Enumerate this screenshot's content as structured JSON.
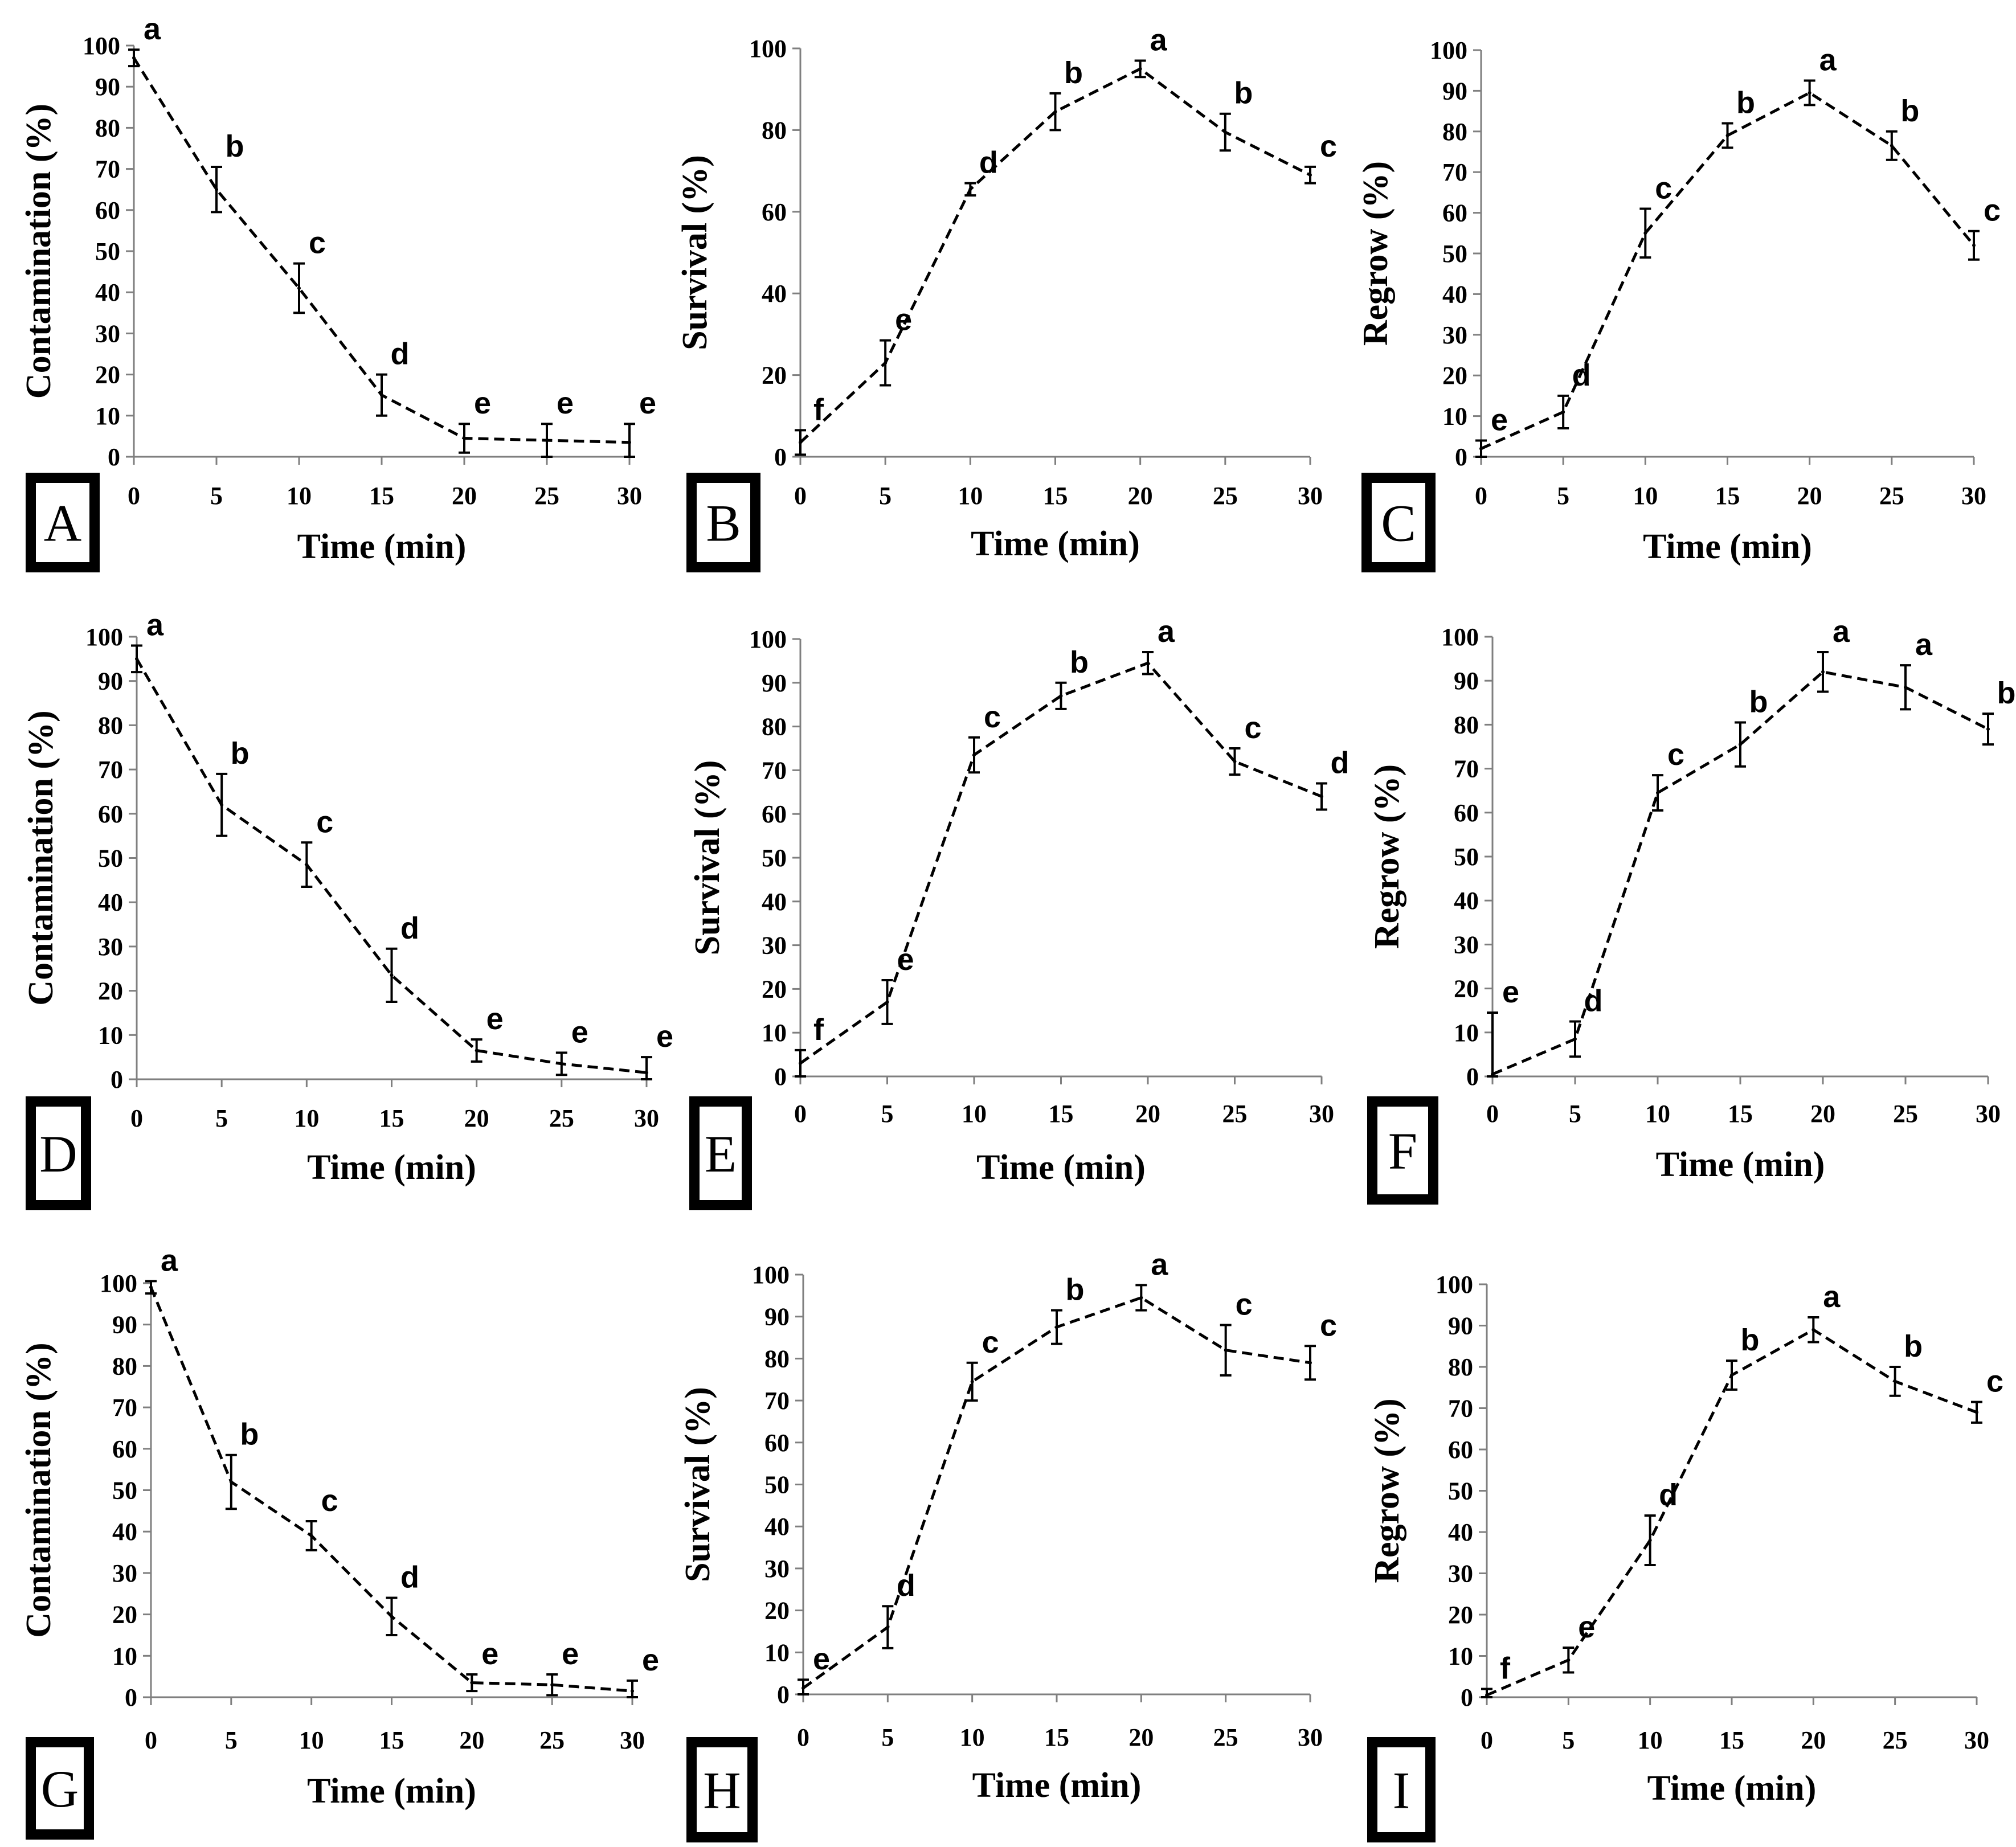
{
  "chart_data": [
    {
      "type": "line",
      "panel_label": "A",
      "xlabel": "Time (min)",
      "ylabel": "Contamination (%)",
      "x": [
        0,
        5,
        10,
        15,
        20,
        25,
        30
      ],
      "y": [
        97,
        65,
        41,
        15,
        4.5,
        4,
        3.5
      ],
      "err": [
        2,
        5.5,
        6,
        5,
        3.5,
        4,
        4.5
      ],
      "letters": [
        "a",
        "b",
        "c",
        "d",
        "e",
        "e",
        "e"
      ],
      "xlim": [
        0,
        30
      ],
      "ylim": [
        0,
        100
      ],
      "yticks": [
        0,
        10,
        20,
        30,
        40,
        50,
        60,
        70,
        80,
        90,
        100
      ],
      "xticks": [
        0,
        5,
        10,
        15,
        20,
        25,
        30
      ]
    },
    {
      "type": "line",
      "panel_label": "B",
      "xlabel": "Time (min)",
      "ylabel": "Survival (%)",
      "x": [
        0,
        5,
        10,
        15,
        20,
        25,
        30
      ],
      "y": [
        3.5,
        23,
        65.5,
        84.5,
        95,
        79.5,
        69
      ],
      "err": [
        3,
        5.5,
        1.5,
        4.5,
        2,
        4.5,
        2
      ],
      "letters": [
        "f",
        "e",
        "d",
        "b",
        "a",
        "b",
        "c"
      ],
      "xlim": [
        0,
        30
      ],
      "ylim": [
        0,
        100
      ],
      "yticks": [
        0,
        20,
        40,
        60,
        80,
        100
      ],
      "xticks": [
        0,
        5,
        10,
        15,
        20,
        25,
        30
      ]
    },
    {
      "type": "line",
      "panel_label": "C",
      "xlabel": "Time (min)",
      "ylabel": "Regrow (%)",
      "x": [
        0,
        5,
        10,
        15,
        20,
        25,
        30
      ],
      "y": [
        2,
        11,
        55,
        79,
        89.5,
        76.5,
        52
      ],
      "err": [
        2,
        4,
        6,
        3,
        3,
        3.5,
        3.5
      ],
      "letters": [
        "e",
        "d",
        "c",
        "b",
        "a",
        "b",
        "c"
      ],
      "xlim": [
        0,
        30
      ],
      "ylim": [
        0,
        100
      ],
      "yticks": [
        0,
        10,
        20,
        30,
        40,
        50,
        60,
        70,
        80,
        90,
        100
      ],
      "xticks": [
        0,
        5,
        10,
        15,
        20,
        25,
        30
      ]
    },
    {
      "type": "line",
      "panel_label": "D",
      "xlabel": "Time (min)",
      "ylabel": "Contamination (%)",
      "x": [
        0,
        5,
        10,
        15,
        20,
        25,
        30
      ],
      "y": [
        95,
        62,
        48.5,
        23.5,
        6.5,
        3.5,
        1.5
      ],
      "err": [
        3,
        7,
        5,
        6,
        2.5,
        2.5,
        3.5
      ],
      "letters": [
        "a",
        "b",
        "c",
        "d",
        "e",
        "e",
        "e"
      ],
      "xlim": [
        0,
        30
      ],
      "ylim": [
        0,
        100
      ],
      "yticks": [
        0,
        10,
        20,
        30,
        40,
        50,
        60,
        70,
        80,
        90,
        100
      ],
      "xticks": [
        0,
        5,
        10,
        15,
        20,
        25,
        30
      ]
    },
    {
      "type": "line",
      "panel_label": "E",
      "xlabel": "Time (min)",
      "ylabel": "Survival (%)",
      "x": [
        0,
        5,
        10,
        15,
        20,
        25,
        30
      ],
      "y": [
        3,
        17,
        73.5,
        87,
        94.5,
        72,
        64
      ],
      "err": [
        3,
        5,
        4,
        3,
        2.5,
        3,
        3
      ],
      "letters": [
        "f",
        "e",
        "c",
        "b",
        "a",
        "c",
        "d"
      ],
      "xlim": [
        0,
        30
      ],
      "ylim": [
        0,
        100
      ],
      "yticks": [
        0,
        10,
        20,
        30,
        40,
        50,
        60,
        70,
        80,
        90,
        100
      ],
      "xticks": [
        0,
        5,
        10,
        15,
        20,
        25,
        30
      ]
    },
    {
      "type": "line",
      "panel_label": "F",
      "xlabel": "Time (min)",
      "ylabel": "Regrow (%)",
      "x": [
        0,
        5,
        10,
        15,
        20,
        25,
        30
      ],
      "y": [
        0.5,
        8.5,
        64.5,
        75.5,
        92,
        88.5,
        79
      ],
      "err": [
        14,
        4,
        4,
        5,
        4.5,
        5,
        3.5
      ],
      "letters": [
        "e",
        "d",
        "c",
        "b",
        "a",
        "a",
        "b"
      ],
      "xlim": [
        0,
        30
      ],
      "ylim": [
        0,
        100
      ],
      "yticks": [
        0,
        10,
        20,
        30,
        40,
        50,
        60,
        70,
        80,
        90,
        100
      ],
      "xticks": [
        0,
        5,
        10,
        15,
        20,
        25,
        30
      ]
    },
    {
      "type": "line",
      "panel_label": "G",
      "xlabel": "Time (min)",
      "ylabel": "Contamination (%)",
      "x": [
        0,
        5,
        10,
        15,
        20,
        25,
        30
      ],
      "y": [
        99,
        52,
        39,
        19.5,
        3.5,
        3,
        1.5
      ],
      "err": [
        1.5,
        6.5,
        3.5,
        4.5,
        2,
        2.5,
        2.5
      ],
      "letters": [
        "a",
        "b",
        "c",
        "d",
        "e",
        "e",
        "e"
      ],
      "xlim": [
        0,
        30
      ],
      "ylim": [
        0,
        100
      ],
      "yticks": [
        0,
        10,
        20,
        30,
        40,
        50,
        60,
        70,
        80,
        90,
        100
      ],
      "xticks": [
        0,
        5,
        10,
        15,
        20,
        25,
        30
      ]
    },
    {
      "type": "line",
      "panel_label": "H",
      "xlabel": "Time (min)",
      "ylabel": "Survival (%)",
      "x": [
        0,
        5,
        10,
        15,
        20,
        25,
        30
      ],
      "y": [
        1.5,
        16,
        74.5,
        87.5,
        94.5,
        82,
        79
      ],
      "err": [
        2,
        5,
        4.5,
        4,
        3,
        6,
        4
      ],
      "letters": [
        "e",
        "d",
        "c",
        "b",
        "a",
        "c",
        "c"
      ],
      "xlim": [
        0,
        30
      ],
      "ylim": [
        0,
        100
      ],
      "yticks": [
        0,
        10,
        20,
        30,
        40,
        50,
        60,
        70,
        80,
        90,
        100
      ],
      "xticks": [
        0,
        5,
        10,
        15,
        20,
        25,
        30
      ]
    },
    {
      "type": "line",
      "panel_label": "I",
      "xlabel": "Time (min)",
      "ylabel": "Regrow (%)",
      "x": [
        0,
        5,
        10,
        15,
        20,
        25,
        30
      ],
      "y": [
        0.5,
        9,
        38,
        78,
        89,
        76.5,
        69
      ],
      "err": [
        1.5,
        3,
        6,
        3.5,
        3,
        3.5,
        2.5
      ],
      "letters": [
        "f",
        "e",
        "d",
        "b",
        "a",
        "b",
        "c"
      ],
      "xlim": [
        0,
        30
      ],
      "ylim": [
        0,
        100
      ],
      "yticks": [
        0,
        10,
        20,
        30,
        40,
        50,
        60,
        70,
        80,
        90,
        100
      ],
      "xticks": [
        0,
        5,
        10,
        15,
        20,
        25,
        30
      ]
    }
  ]
}
